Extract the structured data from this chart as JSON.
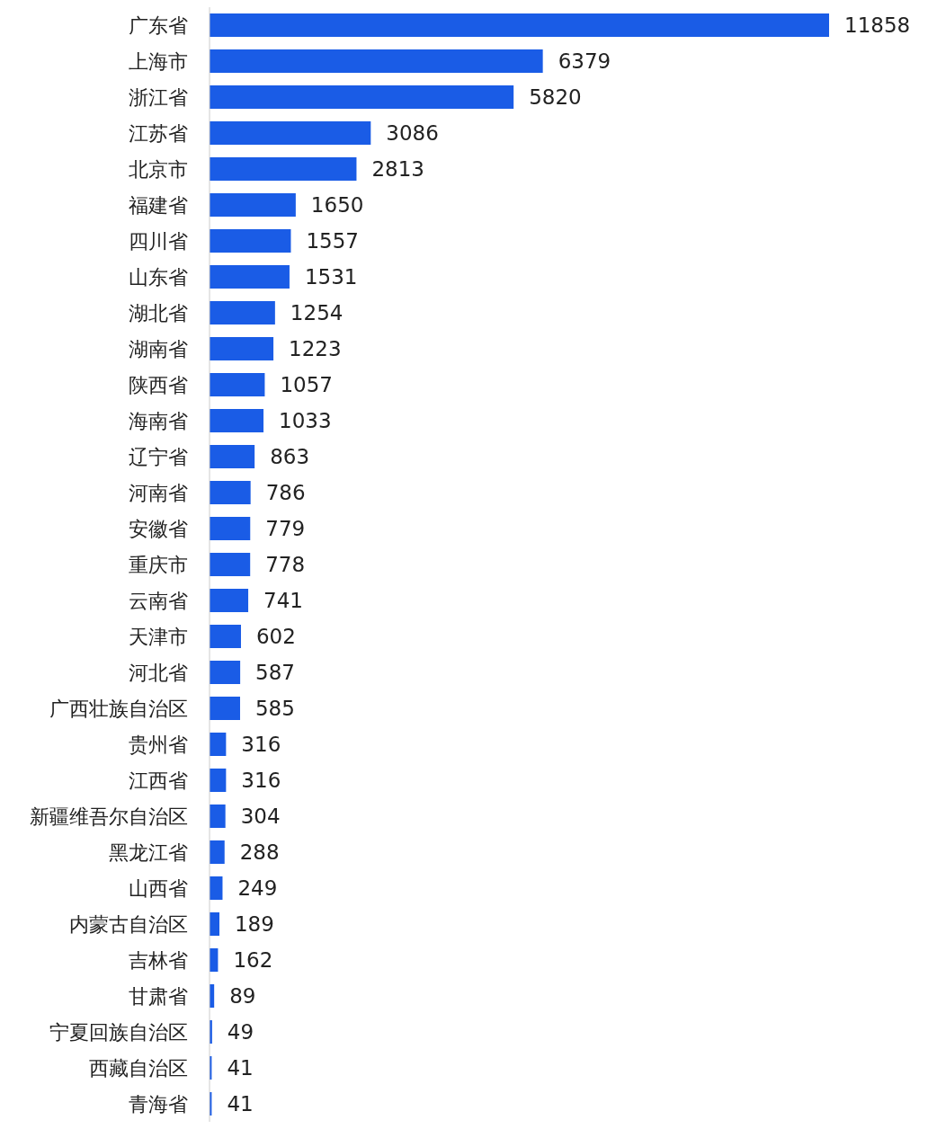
{
  "chart_data": {
    "type": "bar",
    "orientation": "horizontal",
    "data_labels": true,
    "color": "#1a5ce6",
    "categories": [
      "广东省",
      "上海市",
      "浙江省",
      "江苏省",
      "北京市",
      "福建省",
      "四川省",
      "山东省",
      "湖北省",
      "湖南省",
      "陕西省",
      "海南省",
      "辽宁省",
      "河南省",
      "安徽省",
      "重庆市",
      "云南省",
      "天津市",
      "河北省",
      "广西壮族自治区",
      "贵州省",
      "江西省",
      "新疆维吾尔自治区",
      "黑龙江省",
      "山西省",
      "内蒙古自治区",
      "吉林省",
      "甘肃省",
      "宁夏回族自治区",
      "西藏自治区",
      "青海省"
    ],
    "values": [
      11858,
      6379,
      5820,
      3086,
      2813,
      1650,
      1557,
      1531,
      1254,
      1223,
      1057,
      1033,
      863,
      786,
      779,
      778,
      741,
      602,
      587,
      585,
      316,
      316,
      304,
      288,
      249,
      189,
      162,
      89,
      49,
      41,
      41
    ]
  }
}
